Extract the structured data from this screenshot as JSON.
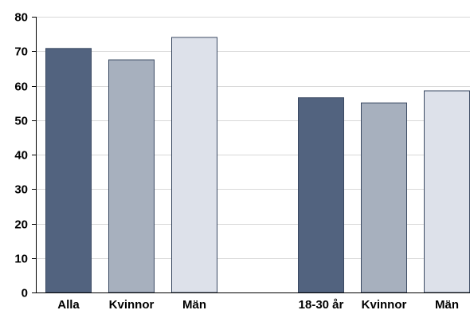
{
  "chart_data": {
    "type": "bar",
    "title": "",
    "xlabel": "",
    "ylabel": "",
    "ylim": [
      0,
      80
    ],
    "yticks": [
      0,
      10,
      20,
      30,
      40,
      50,
      60,
      70,
      80
    ],
    "ytick_labels": [
      "0",
      "10",
      "20",
      "30",
      "40",
      "50",
      "60",
      "70",
      "80"
    ],
    "grid": true,
    "legend": "none",
    "categories": [
      "Alla",
      "Kvinnor",
      "Män",
      "18-30 år",
      "Kvinnor",
      "Män"
    ],
    "values": [
      70.8,
      67.5,
      74.0,
      56.5,
      55.0,
      58.5
    ],
    "colors": [
      "#52637f",
      "#a7b0be",
      "#dde1ea",
      "#52637f",
      "#a7b0be",
      "#dde1ea"
    ],
    "bar_stroke": "#3b4a63",
    "gridline_color": "#d9d9d9",
    "axis_color": "#000000"
  }
}
